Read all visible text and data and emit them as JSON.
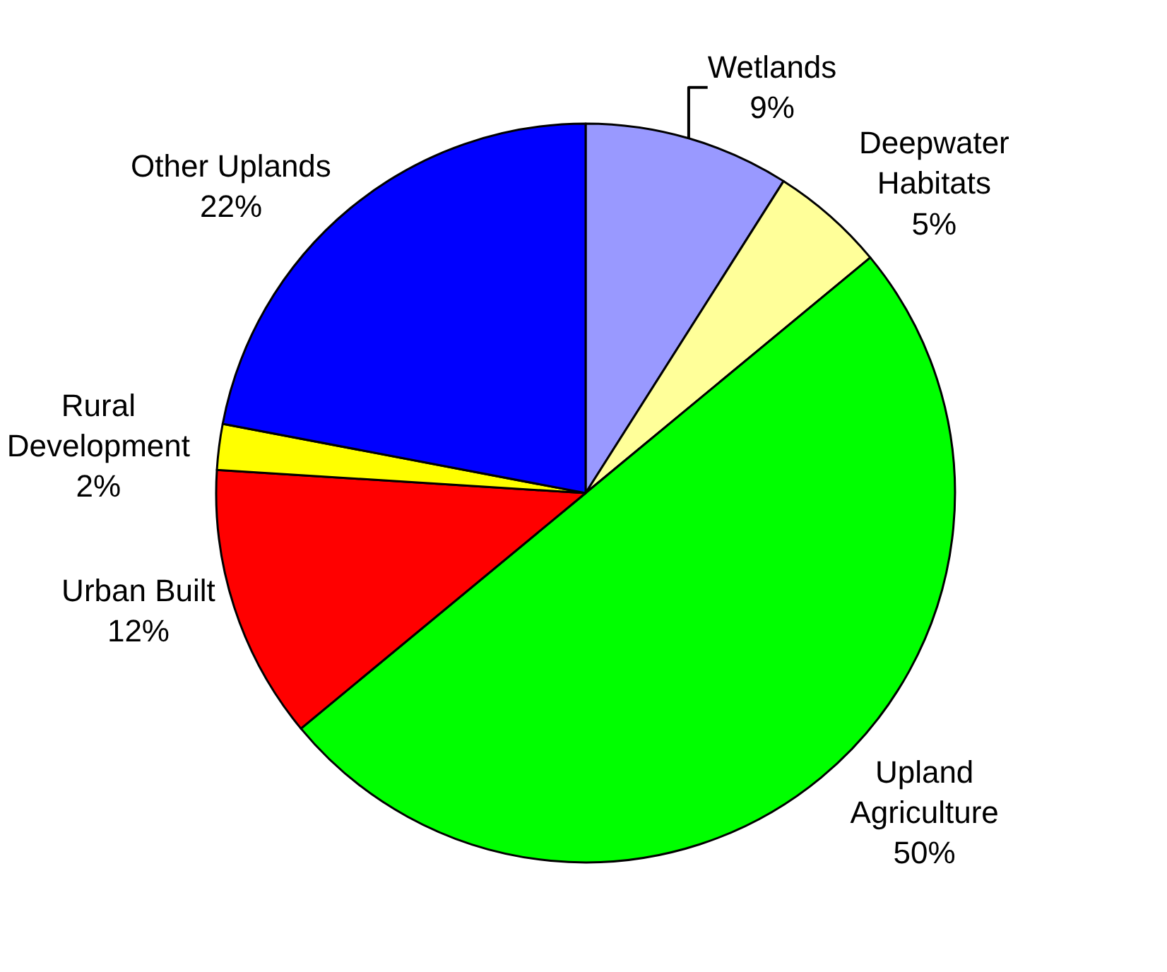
{
  "chart_data": {
    "type": "pie",
    "categories": [
      "Wetlands",
      "Deepwater Habitats",
      "Upland Agriculture",
      "Urban Built",
      "Rural Development",
      "Other Uplands"
    ],
    "values": [
      9,
      5,
      50,
      12,
      2,
      22
    ],
    "value_labels": [
      "9%",
      "5%",
      "50%",
      "12%",
      "2%",
      "22%"
    ],
    "colors": [
      "#9999ff",
      "#ffff99",
      "#00ff00",
      "#ff0000",
      "#ffff00",
      "#0000ff"
    ],
    "legend": false
  }
}
